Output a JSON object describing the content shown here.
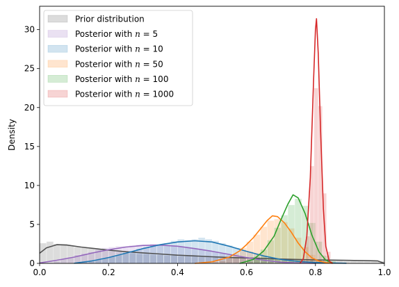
{
  "chart_data": {
    "type": "area",
    "title": "",
    "xlabel": "",
    "ylabel": "Density",
    "xlim": [
      0,
      1
    ],
    "ylim": [
      0,
      33
    ],
    "x_ticks": [
      "0.0",
      "0.2",
      "0.4",
      "0.6",
      "0.8",
      "1.0"
    ],
    "y_ticks": [
      "0",
      "5",
      "10",
      "15",
      "20",
      "25",
      "30"
    ],
    "legend": {
      "position": "upper-left"
    },
    "series": [
      {
        "name": "Prior distribution",
        "prefix": "Prior distribution",
        "n": "",
        "color": "#505050",
        "bins": [
          [
            0.0,
            2.6
          ],
          [
            0.02,
            2.8
          ],
          [
            0.04,
            2.5
          ],
          [
            0.06,
            2.5
          ],
          [
            0.08,
            2.3
          ],
          [
            0.1,
            2.1
          ],
          [
            0.12,
            2.0
          ],
          [
            0.14,
            1.9
          ],
          [
            0.16,
            1.8
          ],
          [
            0.18,
            1.7
          ],
          [
            0.2,
            1.6
          ],
          [
            0.22,
            1.5
          ],
          [
            0.24,
            1.4
          ],
          [
            0.26,
            1.3
          ],
          [
            0.28,
            1.2
          ],
          [
            0.3,
            1.2
          ],
          [
            0.32,
            1.1
          ],
          [
            0.34,
            1.1
          ],
          [
            0.36,
            1.0
          ],
          [
            0.38,
            1.0
          ],
          [
            0.4,
            0.9
          ],
          [
            0.42,
            0.9
          ],
          [
            0.44,
            0.9
          ],
          [
            0.46,
            0.8
          ],
          [
            0.48,
            0.8
          ],
          [
            0.5,
            0.8
          ],
          [
            0.52,
            0.7
          ],
          [
            0.54,
            0.7
          ],
          [
            0.56,
            0.7
          ],
          [
            0.58,
            0.6
          ],
          [
            0.6,
            0.6
          ],
          [
            0.62,
            0.6
          ],
          [
            0.64,
            0.6
          ],
          [
            0.66,
            0.5
          ],
          [
            0.68,
            0.5
          ],
          [
            0.7,
            0.5
          ],
          [
            0.72,
            0.5
          ],
          [
            0.74,
            0.5
          ],
          [
            0.76,
            0.4
          ],
          [
            0.78,
            0.4
          ],
          [
            0.8,
            0.4
          ],
          [
            0.82,
            0.4
          ],
          [
            0.84,
            0.4
          ],
          [
            0.86,
            0.4
          ],
          [
            0.88,
            0.3
          ],
          [
            0.9,
            0.3
          ],
          [
            0.92,
            0.3
          ],
          [
            0.94,
            0.3
          ],
          [
            0.96,
            0.3
          ],
          [
            0.98,
            0.3
          ]
        ],
        "bin_width": 0.02,
        "kde": [
          [
            0.0,
            1.3
          ],
          [
            0.02,
            2.0
          ],
          [
            0.05,
            2.4
          ],
          [
            0.08,
            2.35
          ],
          [
            0.12,
            2.1
          ],
          [
            0.16,
            1.9
          ],
          [
            0.2,
            1.7
          ],
          [
            0.25,
            1.5
          ],
          [
            0.3,
            1.35
          ],
          [
            0.35,
            1.2
          ],
          [
            0.4,
            1.05
          ],
          [
            0.45,
            0.95
          ],
          [
            0.5,
            0.85
          ],
          [
            0.55,
            0.75
          ],
          [
            0.6,
            0.7
          ],
          [
            0.65,
            0.62
          ],
          [
            0.7,
            0.55
          ],
          [
            0.75,
            0.5
          ],
          [
            0.8,
            0.45
          ],
          [
            0.85,
            0.42
          ],
          [
            0.9,
            0.38
          ],
          [
            0.95,
            0.35
          ],
          [
            0.98,
            0.32
          ],
          [
            1.0,
            0.0
          ]
        ]
      },
      {
        "name": "Posterior with n = 5",
        "prefix": "Posterior with ",
        "n": "5",
        "color": "#9467bd",
        "bins": [
          [
            0.02,
            0.1
          ],
          [
            0.04,
            0.3
          ],
          [
            0.06,
            0.6
          ],
          [
            0.08,
            0.8
          ],
          [
            0.1,
            1.1
          ],
          [
            0.12,
            1.3
          ],
          [
            0.14,
            1.5
          ],
          [
            0.16,
            1.8
          ],
          [
            0.18,
            2.0
          ],
          [
            0.2,
            2.1
          ],
          [
            0.22,
            2.2
          ],
          [
            0.24,
            2.2
          ],
          [
            0.26,
            2.3
          ],
          [
            0.28,
            2.4
          ],
          [
            0.3,
            2.4
          ],
          [
            0.32,
            2.5
          ],
          [
            0.34,
            2.4
          ],
          [
            0.36,
            2.3
          ],
          [
            0.38,
            2.3
          ],
          [
            0.4,
            2.2
          ],
          [
            0.42,
            2.0
          ],
          [
            0.44,
            1.9
          ],
          [
            0.46,
            1.8
          ],
          [
            0.48,
            1.6
          ],
          [
            0.5,
            1.5
          ],
          [
            0.52,
            1.3
          ],
          [
            0.54,
            1.1
          ],
          [
            0.56,
            0.9
          ],
          [
            0.58,
            0.8
          ],
          [
            0.6,
            0.6
          ],
          [
            0.62,
            0.5
          ],
          [
            0.64,
            0.3
          ],
          [
            0.66,
            0.2
          ],
          [
            0.68,
            0.1
          ]
        ],
        "bin_width": 0.02,
        "kde": [
          [
            0.0,
            0.05
          ],
          [
            0.05,
            0.4
          ],
          [
            0.1,
            0.8
          ],
          [
            0.15,
            1.3
          ],
          [
            0.2,
            1.75
          ],
          [
            0.25,
            2.1
          ],
          [
            0.3,
            2.3
          ],
          [
            0.35,
            2.35
          ],
          [
            0.4,
            2.2
          ],
          [
            0.45,
            1.9
          ],
          [
            0.5,
            1.55
          ],
          [
            0.55,
            1.15
          ],
          [
            0.6,
            0.75
          ],
          [
            0.65,
            0.4
          ],
          [
            0.7,
            0.15
          ],
          [
            0.75,
            0.05
          ],
          [
            0.8,
            0.0
          ]
        ]
      },
      {
        "name": "Posterior with n = 10",
        "prefix": "Posterior with ",
        "n": "10",
        "color": "#1f77b4",
        "bins": [
          [
            0.1,
            0.1
          ],
          [
            0.12,
            0.2
          ],
          [
            0.14,
            0.3
          ],
          [
            0.16,
            0.5
          ],
          [
            0.18,
            0.7
          ],
          [
            0.2,
            0.9
          ],
          [
            0.22,
            1.1
          ],
          [
            0.24,
            1.4
          ],
          [
            0.26,
            1.6
          ],
          [
            0.28,
            1.9
          ],
          [
            0.3,
            2.1
          ],
          [
            0.32,
            2.3
          ],
          [
            0.34,
            2.5
          ],
          [
            0.36,
            2.6
          ],
          [
            0.38,
            2.9
          ],
          [
            0.4,
            3.1
          ],
          [
            0.42,
            3.0
          ],
          [
            0.44,
            3.1
          ],
          [
            0.46,
            3.3
          ],
          [
            0.48,
            3.1
          ],
          [
            0.5,
            2.9
          ],
          [
            0.52,
            2.6
          ],
          [
            0.54,
            2.3
          ],
          [
            0.56,
            2.0
          ],
          [
            0.58,
            1.7
          ],
          [
            0.6,
            1.5
          ],
          [
            0.62,
            1.2
          ],
          [
            0.64,
            0.9
          ],
          [
            0.66,
            0.7
          ],
          [
            0.68,
            0.5
          ],
          [
            0.7,
            0.4
          ],
          [
            0.72,
            0.3
          ],
          [
            0.74,
            0.2
          ],
          [
            0.76,
            0.2
          ],
          [
            0.78,
            0.1
          ],
          [
            0.8,
            0.1
          ]
        ],
        "bin_width": 0.02,
        "kde": [
          [
            0.1,
            0.02
          ],
          [
            0.15,
            0.3
          ],
          [
            0.2,
            0.75
          ],
          [
            0.25,
            1.3
          ],
          [
            0.3,
            1.9
          ],
          [
            0.35,
            2.4
          ],
          [
            0.4,
            2.75
          ],
          [
            0.45,
            2.9
          ],
          [
            0.5,
            2.75
          ],
          [
            0.55,
            2.2
          ],
          [
            0.6,
            1.55
          ],
          [
            0.65,
            0.95
          ],
          [
            0.7,
            0.5
          ],
          [
            0.75,
            0.25
          ],
          [
            0.8,
            0.12
          ],
          [
            0.85,
            0.05
          ],
          [
            0.89,
            0.02
          ]
        ]
      },
      {
        "name": "Posterior with n = 50",
        "prefix": "Posterior with ",
        "n": "50",
        "color": "#ff7f0e",
        "bins": [
          [
            0.5,
            0.2
          ],
          [
            0.52,
            0.4
          ],
          [
            0.54,
            0.8
          ],
          [
            0.56,
            1.3
          ],
          [
            0.58,
            2.0
          ],
          [
            0.6,
            2.8
          ],
          [
            0.62,
            3.7
          ],
          [
            0.64,
            4.7
          ],
          [
            0.66,
            5.5
          ],
          [
            0.68,
            5.7
          ],
          [
            0.7,
            5.3
          ],
          [
            0.72,
            4.5
          ],
          [
            0.74,
            3.3
          ],
          [
            0.76,
            2.1
          ],
          [
            0.78,
            1.1
          ],
          [
            0.8,
            0.5
          ],
          [
            0.82,
            0.2
          ]
        ],
        "bin_width": 0.02,
        "kde": [
          [
            0.45,
            0.0
          ],
          [
            0.5,
            0.2
          ],
          [
            0.55,
            0.8
          ],
          [
            0.58,
            1.6
          ],
          [
            0.6,
            2.4
          ],
          [
            0.62,
            3.3
          ],
          [
            0.64,
            4.4
          ],
          [
            0.66,
            5.5
          ],
          [
            0.675,
            6.1
          ],
          [
            0.69,
            6.0
          ],
          [
            0.71,
            5.2
          ],
          [
            0.73,
            4.0
          ],
          [
            0.75,
            2.6
          ],
          [
            0.77,
            1.5
          ],
          [
            0.79,
            0.7
          ],
          [
            0.81,
            0.3
          ],
          [
            0.83,
            0.1
          ],
          [
            0.85,
            0.0
          ]
        ]
      },
      {
        "name": "Posterior with n = 100",
        "prefix": "Posterior with ",
        "n": "100",
        "color": "#2ca02c",
        "bins": [
          [
            0.6,
            0.3
          ],
          [
            0.62,
            0.9
          ],
          [
            0.64,
            1.8
          ],
          [
            0.66,
            3.0
          ],
          [
            0.68,
            4.6
          ],
          [
            0.7,
            6.2
          ],
          [
            0.72,
            7.5
          ],
          [
            0.74,
            8.3
          ],
          [
            0.76,
            7.4
          ],
          [
            0.78,
            5.2
          ],
          [
            0.8,
            2.8
          ],
          [
            0.82,
            1.0
          ],
          [
            0.84,
            0.3
          ]
        ],
        "bin_width": 0.02,
        "kde": [
          [
            0.58,
            0.0
          ],
          [
            0.62,
            0.5
          ],
          [
            0.65,
            1.6
          ],
          [
            0.68,
            3.5
          ],
          [
            0.7,
            5.6
          ],
          [
            0.72,
            7.6
          ],
          [
            0.735,
            8.8
          ],
          [
            0.75,
            8.4
          ],
          [
            0.77,
            6.4
          ],
          [
            0.79,
            3.6
          ],
          [
            0.81,
            1.5
          ],
          [
            0.83,
            0.4
          ],
          [
            0.85,
            0.05
          ]
        ]
      },
      {
        "name": "Posterior with n = 1000",
        "prefix": "Posterior with ",
        "n": "1000",
        "color": "#d62728",
        "bins": [
          [
            0.76,
            0.4
          ],
          [
            0.772,
            3.5
          ],
          [
            0.784,
            12.5
          ],
          [
            0.796,
            22.5
          ],
          [
            0.808,
            20.2
          ],
          [
            0.82,
            9.0
          ],
          [
            0.832,
            1.5
          ]
        ],
        "bin_width": 0.012,
        "kde": [
          [
            0.755,
            0.0
          ],
          [
            0.765,
            0.6
          ],
          [
            0.775,
            3.5
          ],
          [
            0.785,
            11.0
          ],
          [
            0.795,
            24.0
          ],
          [
            0.8,
            30.0
          ],
          [
            0.803,
            31.4
          ],
          [
            0.808,
            27.0
          ],
          [
            0.815,
            17.0
          ],
          [
            0.823,
            7.0
          ],
          [
            0.83,
            2.2
          ],
          [
            0.84,
            0.3
          ],
          [
            0.85,
            0.0
          ]
        ]
      }
    ]
  }
}
